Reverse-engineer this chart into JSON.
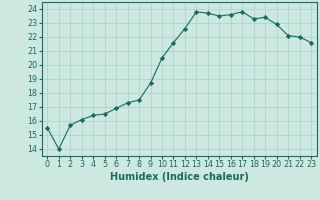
{
  "x": [
    0,
    1,
    2,
    3,
    4,
    5,
    6,
    7,
    8,
    9,
    10,
    11,
    12,
    13,
    14,
    15,
    16,
    17,
    18,
    19,
    20,
    21,
    22,
    23
  ],
  "y": [
    15.5,
    14.0,
    15.7,
    16.1,
    16.4,
    16.5,
    16.9,
    17.3,
    17.5,
    18.7,
    20.5,
    21.6,
    22.6,
    23.8,
    23.7,
    23.5,
    23.6,
    23.8,
    23.3,
    23.4,
    22.9,
    22.1,
    22.0,
    21.6
  ],
  "line_color": "#1a6b5a",
  "marker": "D",
  "marker_size": 2.2,
  "bg_color": "#cce8e0",
  "grid_color": "#b0d4cc",
  "xlabel": "Humidex (Indice chaleur)",
  "ylim": [
    13.5,
    24.5
  ],
  "xlim": [
    -0.5,
    23.5
  ],
  "yticks": [
    14,
    15,
    16,
    17,
    18,
    19,
    20,
    21,
    22,
    23,
    24
  ],
  "xticks": [
    0,
    1,
    2,
    3,
    4,
    5,
    6,
    7,
    8,
    9,
    10,
    11,
    12,
    13,
    14,
    15,
    16,
    17,
    18,
    19,
    20,
    21,
    22,
    23
  ],
  "tick_color": "#1a6b5a",
  "label_fontsize": 7.0,
  "tick_fontsize": 5.8
}
